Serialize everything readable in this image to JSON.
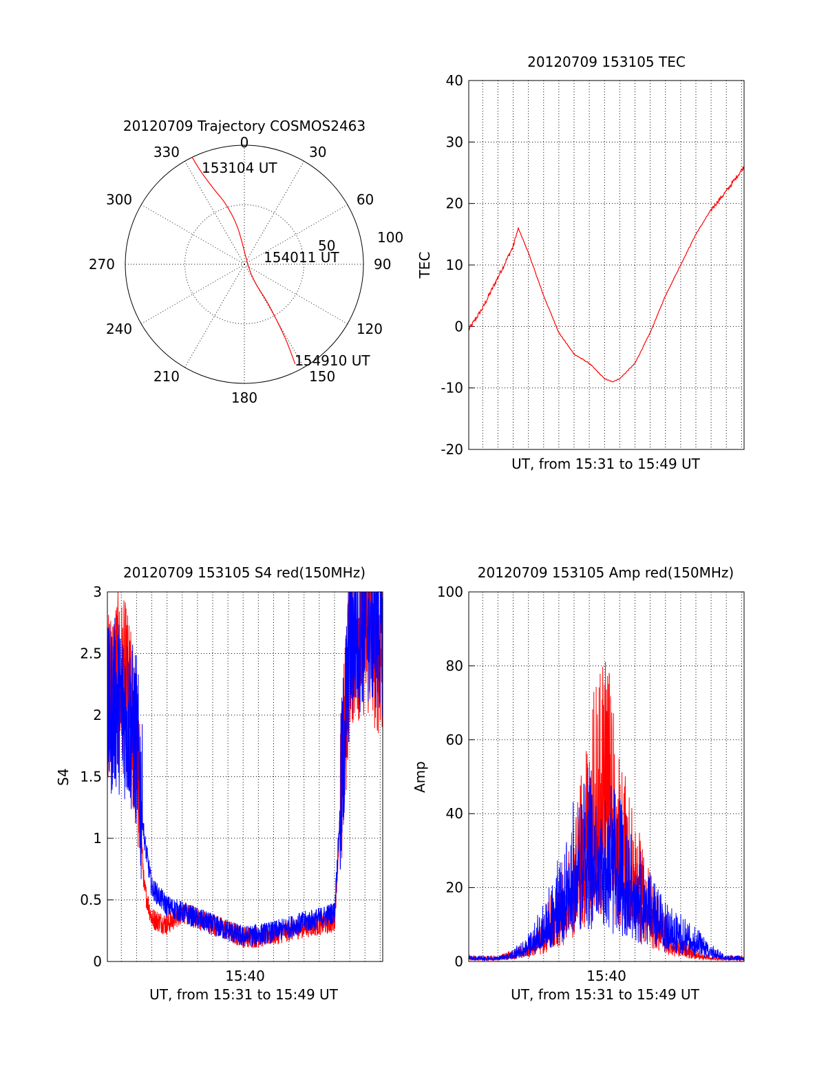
{
  "chart_data": [
    {
      "id": "polar",
      "type": "scatter",
      "title": "20120709 Trajectory COSMOS2463",
      "azimuth_labels": [
        "0",
        "30",
        "60",
        "90",
        "120",
        "150",
        "180",
        "210",
        "240",
        "270",
        "300",
        "330"
      ],
      "elevation_labels": [
        "50",
        "100"
      ],
      "annotations": [
        "153104 UT",
        "154011 UT",
        "154910 UT"
      ],
      "colors": {
        "trajectory": "#ff0000"
      },
      "trajectory": {
        "azimuth": [
          334,
          335,
          338,
          343,
          350,
          145,
          149,
          151,
          153
        ],
        "elevation": [
          100,
          85,
          68,
          52,
          30,
          10,
          40,
          70,
          94
        ]
      }
    },
    {
      "id": "tec",
      "type": "line",
      "title": "20120709 153105 TEC",
      "xlabel": "UT, from 15:31 to 15:49 UT",
      "ylabel": "TEC",
      "ylim": [
        -20,
        40
      ],
      "ytick_labels": [
        "-20",
        "-10",
        "0",
        "10",
        "20",
        "30",
        "40"
      ],
      "xlim": [
        "15:31:05",
        "15:49:10"
      ],
      "grid": true,
      "colors": {
        "series": "#ff0000"
      },
      "series": [
        {
          "x": [
            "15:31:05",
            "15:32:00",
            "15:33:00",
            "15:34:00",
            "15:34:20",
            "15:35:00",
            "15:36:00",
            "15:37:00",
            "15:38:00",
            "15:39:00",
            "15:40:00",
            "15:40:30",
            "15:41:00",
            "15:42:00",
            "15:43:00",
            "15:44:00",
            "15:45:00",
            "15:46:00",
            "15:47:00",
            "15:48:00",
            "15:49:10"
          ],
          "values": [
            -0.5,
            3,
            8,
            13,
            16,
            12,
            5,
            -1,
            -4.5,
            -6,
            -8.5,
            -9,
            -8.5,
            -6,
            -1,
            5,
            10,
            15,
            19,
            22,
            26
          ]
        }
      ]
    },
    {
      "id": "s4",
      "type": "line",
      "title": "20120709 153105 S4 red(150MHz)",
      "xlabel": "UT, from 15:31 to 15:49 UT",
      "ylabel": "S4",
      "ylim": [
        0,
        3
      ],
      "ytick_labels": [
        "0",
        "0.5",
        "1",
        "1.5",
        "2",
        "2.5",
        "3"
      ],
      "xtick_labels": [
        "15:40"
      ],
      "xlim": [
        "15:31:05",
        "15:49:10"
      ],
      "grid": true,
      "colors": {
        "red": "#ff0000",
        "blue": "#0000ff"
      },
      "series": [
        {
          "color": "red",
          "x": [
            "15:31:05",
            "15:31:40",
            "15:32:20",
            "15:33:00",
            "15:33:30",
            "15:34:00",
            "15:35:00",
            "15:36:00",
            "15:37:00",
            "15:38:00",
            "15:39:00",
            "15:40:00",
            "15:41:00",
            "15:42:00",
            "15:43:00",
            "15:44:00",
            "15:45:00",
            "15:46:00",
            "15:47:00",
            "15:48:00",
            "15:49:10"
          ],
          "values": [
            2.1,
            2.3,
            2.2,
            1.7,
            0.6,
            0.35,
            0.3,
            0.4,
            0.35,
            0.3,
            0.25,
            0.2,
            0.2,
            0.22,
            0.25,
            0.28,
            0.3,
            0.32,
            2.6,
            2.7,
            2.5
          ]
        },
        {
          "color": "blue",
          "x": [
            "15:31:05",
            "15:31:40",
            "15:32:20",
            "15:33:00",
            "15:33:30",
            "15:34:00",
            "15:35:00",
            "15:36:00",
            "15:37:00",
            "15:38:00",
            "15:39:00",
            "15:40:00",
            "15:41:00",
            "15:42:00",
            "15:43:00",
            "15:44:00",
            "15:45:00",
            "15:46:00",
            "15:47:00",
            "15:48:00",
            "15:49:10"
          ],
          "values": [
            2.0,
            2.1,
            2.0,
            1.8,
            1.0,
            0.6,
            0.45,
            0.4,
            0.35,
            0.3,
            0.25,
            0.2,
            0.22,
            0.24,
            0.28,
            0.32,
            0.35,
            0.4,
            2.6,
            2.8,
            2.7
          ]
        }
      ]
    },
    {
      "id": "amp",
      "type": "line",
      "title": "20120709 153105 Amp red(150MHz)",
      "xlabel": "UT, from 15:31 to 15:49 UT",
      "ylabel": "Amp",
      "ylim": [
        0,
        100
      ],
      "ytick_labels": [
        "0",
        "20",
        "40",
        "60",
        "80",
        "100"
      ],
      "xtick_labels": [
        "15:40"
      ],
      "xlim": [
        "15:31:05",
        "15:49:10"
      ],
      "grid": true,
      "colors": {
        "red": "#ff0000",
        "blue": "#0000ff"
      },
      "series": [
        {
          "color": "red",
          "x": [
            "15:31:05",
            "15:33:00",
            "15:34:00",
            "15:35:00",
            "15:36:00",
            "15:37:00",
            "15:38:00",
            "15:39:00",
            "15:39:30",
            "15:40:00",
            "15:40:30",
            "15:41:00",
            "15:42:00",
            "15:43:00",
            "15:44:00",
            "15:45:00",
            "15:46:00",
            "15:47:00",
            "15:48:00",
            "15:49:10"
          ],
          "values": [
            1,
            1,
            2,
            4,
            8,
            15,
            25,
            40,
            50,
            55,
            45,
            35,
            25,
            15,
            8,
            4,
            2,
            1,
            1,
            1
          ]
        },
        {
          "color": "blue",
          "x": [
            "15:31:05",
            "15:33:00",
            "15:34:00",
            "15:35:00",
            "15:36:00",
            "15:37:00",
            "15:38:00",
            "15:39:00",
            "15:39:30",
            "15:40:00",
            "15:40:30",
            "15:41:00",
            "15:42:00",
            "15:43:00",
            "15:44:00",
            "15:45:00",
            "15:46:00",
            "15:47:00",
            "15:48:00",
            "15:49:10"
          ],
          "values": [
            1,
            1,
            2,
            5,
            10,
            18,
            28,
            35,
            30,
            30,
            30,
            28,
            22,
            15,
            10,
            8,
            6,
            3,
            1,
            1
          ]
        }
      ]
    }
  ]
}
